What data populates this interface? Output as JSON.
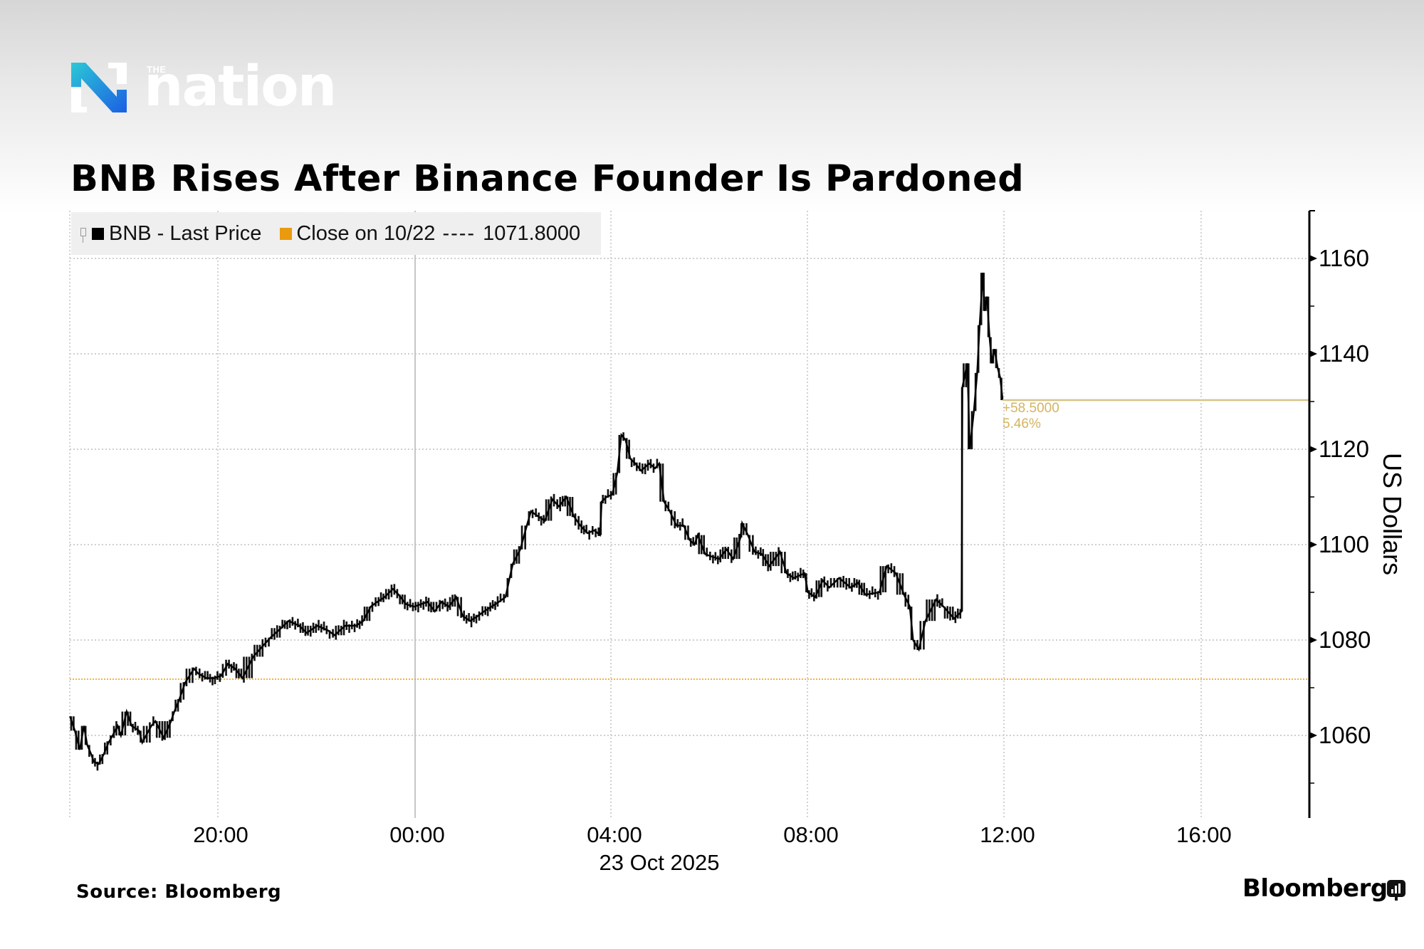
{
  "brand": {
    "logo_small": "THE",
    "logo_word": "nation",
    "gradient_start": "#2cc8d6",
    "gradient_end": "#1b5fe3"
  },
  "title": "BNB Rises After Binance Founder Is Pardoned",
  "legend": {
    "series_label": "BNB - Last Price",
    "close_label": "Close on 10/22",
    "close_dashes": "----",
    "close_value": "1071.8000",
    "series_color": "#000000",
    "close_color": "#e99a0e"
  },
  "change_annotation": {
    "abs": "+58.5000",
    "pct": "5.46%",
    "color": "#d4b45e"
  },
  "x_axis": {
    "ticks": [
      "20:00",
      "00:00",
      "04:00",
      "08:00",
      "12:00",
      "16:00"
    ],
    "date_label": "23 Oct 2025"
  },
  "y_axis": {
    "title": "US Dollars",
    "ticks": [
      "1160",
      "1140",
      "1120",
      "1100",
      "1080",
      "1060"
    ]
  },
  "footer": {
    "source": "Source: Bloomberg",
    "brand": "Bloomberg"
  },
  "chart_data": {
    "type": "line",
    "title": "BNB Rises After Binance Founder Is Pardoned",
    "xlabel": "23 Oct 2025",
    "ylabel": "US Dollars",
    "ylim": [
      1045,
      1170
    ],
    "xlim": [
      "22 Oct 17:00",
      "23 Oct 18:05"
    ],
    "x_ticks": [
      "20:00",
      "00:00",
      "04:00",
      "08:00",
      "12:00",
      "16:00"
    ],
    "y_ticks": [
      1060,
      1080,
      1100,
      1120,
      1140,
      1160
    ],
    "grid": true,
    "legend_position": "top-left",
    "reference_line": {
      "name": "Close on 10/22",
      "value": 1071.8,
      "style": "dotted",
      "color": "#e99a0e"
    },
    "last_value_line": {
      "value": 1130.3,
      "change": 58.5,
      "change_pct": 5.46,
      "color": "#d4b45e"
    },
    "series": [
      {
        "name": "BNB - Last Price",
        "color": "#000000",
        "points": [
          [
            "17:00",
            1064
          ],
          [
            "17:06",
            1061
          ],
          [
            "17:12",
            1057
          ],
          [
            "17:17",
            1062
          ],
          [
            "17:21",
            1058
          ],
          [
            "17:26",
            1056
          ],
          [
            "17:29",
            1054.5
          ],
          [
            "17:35",
            1054
          ],
          [
            "17:41",
            1056
          ],
          [
            "17:47",
            1058.5
          ],
          [
            "17:52",
            1060
          ],
          [
            "17:58",
            1062
          ],
          [
            "18:02",
            1060
          ],
          [
            "18:09",
            1065
          ],
          [
            "18:15",
            1062
          ],
          [
            "18:24",
            1061
          ],
          [
            "18:28",
            1058.5
          ],
          [
            "18:39",
            1062
          ],
          [
            "18:44",
            1063
          ],
          [
            "18:54",
            1059.5
          ],
          [
            "19:03",
            1063
          ],
          [
            "19:07",
            1065
          ],
          [
            "19:13",
            1067.5
          ],
          [
            "19:20",
            1071
          ],
          [
            "19:31",
            1074
          ],
          [
            "19:36",
            1073
          ],
          [
            "19:46",
            1072
          ],
          [
            "19:55",
            1072
          ],
          [
            "20:04",
            1072.5
          ],
          [
            "20:12",
            1075
          ],
          [
            "20:21",
            1074
          ],
          [
            "20:30",
            1072
          ],
          [
            "20:43",
            1076.5
          ],
          [
            "20:56",
            1079
          ],
          [
            "21:04",
            1080.5
          ],
          [
            "21:17",
            1082.5
          ],
          [
            "21:26",
            1084
          ],
          [
            "21:39",
            1083
          ],
          [
            "21:48",
            1081.5
          ],
          [
            "22:01",
            1083
          ],
          [
            "22:14",
            1082
          ],
          [
            "22:22",
            1081
          ],
          [
            "22:35",
            1083
          ],
          [
            "22:48",
            1083
          ],
          [
            "22:57",
            1084
          ],
          [
            "23:06",
            1087
          ],
          [
            "23:14",
            1088
          ],
          [
            "23:23",
            1089
          ],
          [
            "23:33",
            1090.7
          ],
          [
            "23:40",
            1089.5
          ],
          [
            "23:49",
            1087.5
          ],
          [
            "23:59",
            1087
          ],
          [
            "00:15",
            1088
          ],
          [
            "00:24",
            1086
          ],
          [
            "00:32",
            1088
          ],
          [
            "00:41",
            1087
          ],
          [
            "00:50",
            1089
          ],
          [
            "00:58",
            1085
          ],
          [
            "01:07",
            1084
          ],
          [
            "01:16",
            1085
          ],
          [
            "01:24",
            1086
          ],
          [
            "01:33",
            1087
          ],
          [
            "01:42",
            1088
          ],
          [
            "01:50",
            1089
          ],
          [
            "01:55",
            1093
          ],
          [
            "01:59",
            1096
          ],
          [
            "02:08",
            1099
          ],
          [
            "02:16",
            1104
          ],
          [
            "02:21",
            1107
          ],
          [
            "02:29",
            1106
          ],
          [
            "02:38",
            1105
          ],
          [
            "02:47",
            1109.5
          ],
          [
            "02:55",
            1108
          ],
          [
            "03:04",
            1110
          ],
          [
            "03:13",
            1106
          ],
          [
            "03:21",
            1104
          ],
          [
            "03:30",
            1102.4
          ],
          [
            "03:38",
            1103
          ],
          [
            "03:45",
            1102
          ],
          [
            "03:47",
            1109
          ],
          [
            "03:53",
            1110
          ],
          [
            "04:00",
            1110.5
          ],
          [
            "04:06",
            1115
          ],
          [
            "04:11",
            1123
          ],
          [
            "04:16",
            1122
          ],
          [
            "04:22",
            1118
          ],
          [
            "04:28",
            1117
          ],
          [
            "04:35",
            1115.5
          ],
          [
            "04:45",
            1117
          ],
          [
            "04:52",
            1116
          ],
          [
            "04:57",
            1117
          ],
          [
            "05:03",
            1109
          ],
          [
            "05:10",
            1107
          ],
          [
            "05:18",
            1104
          ],
          [
            "05:27",
            1104
          ],
          [
            "05:34",
            1101
          ],
          [
            "05:40",
            1100
          ],
          [
            "05:44",
            1102
          ],
          [
            "05:53",
            1098
          ],
          [
            "06:01",
            1097.5
          ],
          [
            "06:10",
            1097
          ],
          [
            "06:19",
            1099
          ],
          [
            "06:27",
            1097
          ],
          [
            "06:36",
            1101.5
          ],
          [
            "06:38",
            1104.5
          ],
          [
            "06:45",
            1102
          ],
          [
            "06:53",
            1098.5
          ],
          [
            "07:02",
            1098
          ],
          [
            "07:11",
            1095.5
          ],
          [
            "07:24",
            1098.5
          ],
          [
            "07:32",
            1094
          ],
          [
            "07:41",
            1093
          ],
          [
            "07:54",
            1094
          ],
          [
            "07:58",
            1090
          ],
          [
            "08:07",
            1089
          ],
          [
            "08:16",
            1092.5
          ],
          [
            "08:24",
            1091
          ],
          [
            "08:36",
            1093
          ],
          [
            "08:50",
            1091
          ],
          [
            "08:59",
            1092
          ],
          [
            "09:08",
            1089.5
          ],
          [
            "09:25",
            1090
          ],
          [
            "09:34",
            1095.5
          ],
          [
            "09:45",
            1094
          ],
          [
            "09:55",
            1089.5
          ],
          [
            "10:02",
            1087
          ],
          [
            "10:06",
            1080
          ],
          [
            "10:13",
            1078
          ],
          [
            "10:21",
            1084
          ],
          [
            "10:34",
            1088.5
          ],
          [
            "10:43",
            1087
          ],
          [
            "10:56",
            1084.5
          ],
          [
            "11:05",
            1086
          ],
          [
            "11:06",
            1133
          ],
          [
            "11:12",
            1138
          ],
          [
            "11:15",
            1120
          ],
          [
            "11:20",
            1128
          ],
          [
            "11:24",
            1136
          ],
          [
            "11:27",
            1146
          ],
          [
            "11:31",
            1157
          ],
          [
            "11:33",
            1149
          ],
          [
            "11:36",
            1152
          ],
          [
            "11:39",
            1143.5
          ],
          [
            "11:42",
            1138
          ],
          [
            "11:45",
            1141
          ],
          [
            "11:49",
            1137
          ],
          [
            "11:52",
            1135
          ],
          [
            "11:55",
            1130.3
          ]
        ]
      }
    ]
  }
}
